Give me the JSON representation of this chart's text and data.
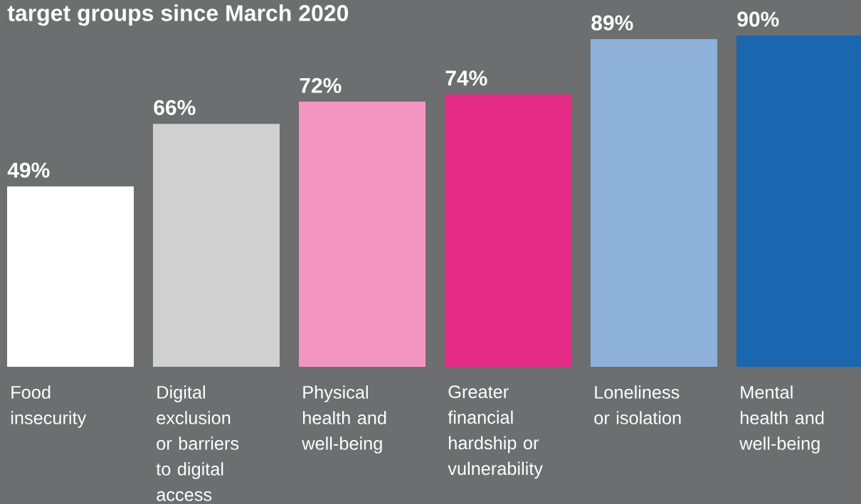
{
  "chart_data": {
    "type": "bar",
    "title": "target groups since March 2020",
    "categories": [
      "Food insecurity",
      "Digital exclusion or barriers to digital access",
      "Physical health and well-being",
      "Greater financial hardship or vulnerability",
      "Loneliness or isolation",
      "Mental health and well-being"
    ],
    "values": [
      49,
      66,
      72,
      74,
      89,
      90
    ],
    "value_labels": [
      "49%",
      "66%",
      "72%",
      "74%",
      "89%",
      "90%"
    ],
    "colors": [
      "#ffffff",
      "#cfd0cf",
      "#f296c1",
      "#e52d87",
      "#8db1d9",
      "#1a67b0"
    ]
  }
}
